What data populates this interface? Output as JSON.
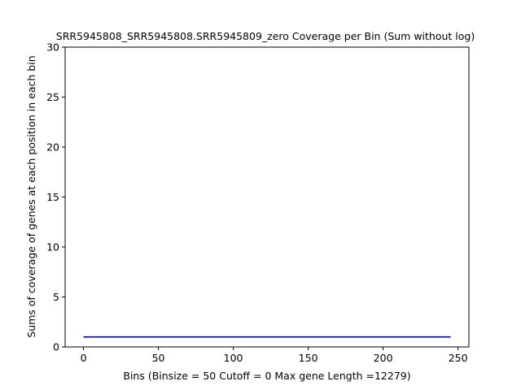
{
  "chart_data": {
    "type": "line",
    "title": "SRR5945808_SRR5945808.SRR5945809_zero Coverage per Bin (Sum without log)",
    "xlabel": "Bins  (Binsize = 50 Cutoff = 0 Max gene Length =12279)",
    "ylabel": "Sums of coverage of genes at each position in each bin",
    "xlim": [
      -12.25,
      257.25
    ],
    "ylim": [
      0,
      30
    ],
    "xticks": [
      0,
      50,
      100,
      150,
      200,
      250
    ],
    "yticks": [
      0,
      5,
      10,
      15,
      20,
      25,
      30
    ],
    "grid": false,
    "colors": {
      "line": "#00007f"
    },
    "series": [
      {
        "x": [
          0,
          245
        ],
        "y": [
          1,
          1
        ]
      }
    ]
  }
}
